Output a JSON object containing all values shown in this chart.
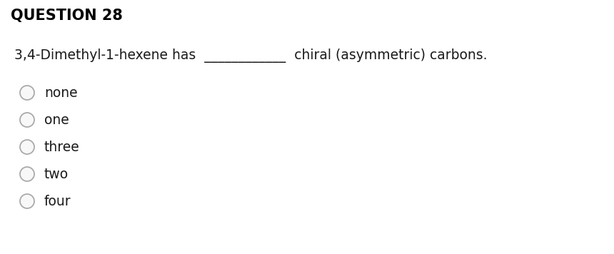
{
  "title": "QUESTION 28",
  "question_text": "3,4-Dimethyl-1-hexene has",
  "blank": "____________",
  "question_suffix": "chiral (asymmetric) carbons.",
  "options": [
    "none",
    "one",
    "three",
    "two",
    "four"
  ],
  "bg_color": "#ffffff",
  "title_color": "#000000",
  "text_color": "#1a1a1a",
  "title_fontsize": 15,
  "question_fontsize": 13.5,
  "option_fontsize": 13.5,
  "circle_edge_color": "#aaaaaa",
  "circle_face_color": "#f8f8f8"
}
